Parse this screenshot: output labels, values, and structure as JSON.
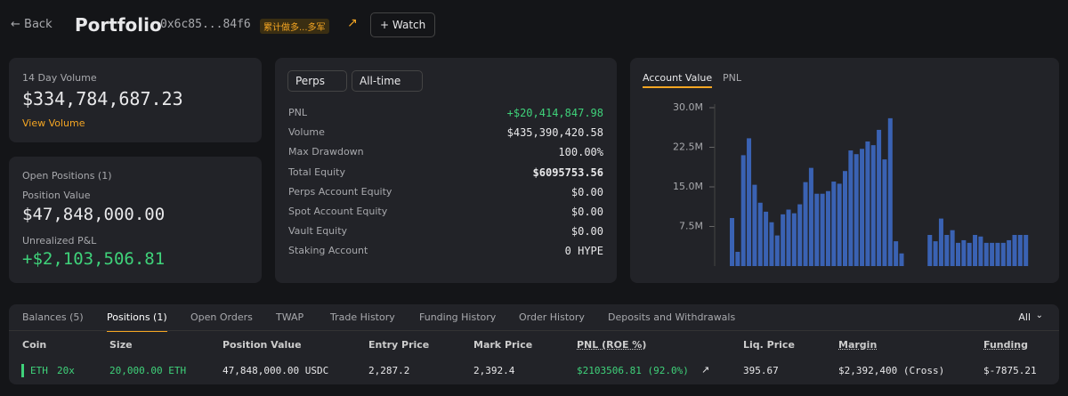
{
  "header": {
    "back": "Back",
    "title": "Portfolio",
    "address": "0x6c85...84f6",
    "tag": "累计做多...多军",
    "watch": "Watch"
  },
  "volume_card": {
    "label": "14 Day Volume",
    "value": "$334,784,687.23",
    "link": "View Volume"
  },
  "positions_card": {
    "title": "Open Positions (1)",
    "position_value_label": "Position Value",
    "position_value": "$47,848,000.00",
    "unrealized_label": "Unrealized P&L",
    "unrealized_value": "+$2,103,506.81"
  },
  "stats": {
    "filters": [
      "Perps",
      "All-time"
    ],
    "rows": [
      [
        "PNL",
        "+$20,414,847.98"
      ],
      [
        "Volume",
        "$435,390,420.58"
      ],
      [
        "Max Drawdown",
        "100.00%"
      ],
      [
        "Total Equity",
        "$6095753.56"
      ],
      [
        "Perps Account Equity",
        "$0.00"
      ],
      [
        "Spot Account Equity",
        "$0.00"
      ],
      [
        "Vault Equity",
        "$0.00"
      ],
      [
        "Staking Account",
        "0 HYPE"
      ]
    ]
  },
  "chart_tabs": [
    "Account Value",
    "PNL"
  ],
  "chart_data": {
    "type": "bar",
    "color": "#3a62b3",
    "ylim": [
      0,
      30
    ],
    "yticks": [
      {
        "value": 7.5,
        "label": "7.5M"
      },
      {
        "value": 15,
        "label": "15.0M"
      },
      {
        "value": 22.5,
        "label": "22.5M"
      },
      {
        "value": 30,
        "label": "30.0M"
      }
    ],
    "values": [
      9.1,
      2.7,
      21,
      24.2,
      15.4,
      12,
      10.3,
      8.3,
      5.8,
      9.8,
      10.7,
      10,
      11.7,
      15.9,
      18.6,
      13.7,
      13.7,
      14.2,
      16,
      15.6,
      18,
      21.9,
      21.2,
      22.2,
      23.6,
      22.9,
      25.8,
      20.2,
      28,
      4.7,
      2.4,
      null,
      null,
      null,
      null,
      5.9,
      4.7,
      9,
      5.9,
      6.8,
      4.4,
      4.9,
      4.4,
      5.9,
      5.6,
      4.4,
      4.4,
      4.4,
      4.4,
      4.9,
      5.9,
      5.9,
      5.9
    ]
  },
  "table": {
    "tabs": [
      "Balances (5)",
      "Positions (1)",
      "Open Orders",
      "TWAP",
      "Trade History",
      "Funding History",
      "Order History",
      "Deposits and Withdrawals"
    ],
    "filter": "All",
    "columns": [
      "Coin",
      "Size",
      "Position Value",
      "Entry Price",
      "Mark Price",
      "PNL (ROE %)",
      "Liq. Price",
      "Margin",
      "Funding"
    ],
    "rows": [
      {
        "coin": "ETH",
        "leverage": "20x",
        "size": "20,000.00 ETH",
        "position_value": "47,848,000.00 USDC",
        "entry_price": "2,287.2",
        "mark_price": "2,392.4",
        "pnl": "$2103506.81 (92.0%)",
        "liq_price": "395.67",
        "margin": "$2,392,400 (Cross)",
        "funding": "$-7875.21"
      }
    ]
  }
}
